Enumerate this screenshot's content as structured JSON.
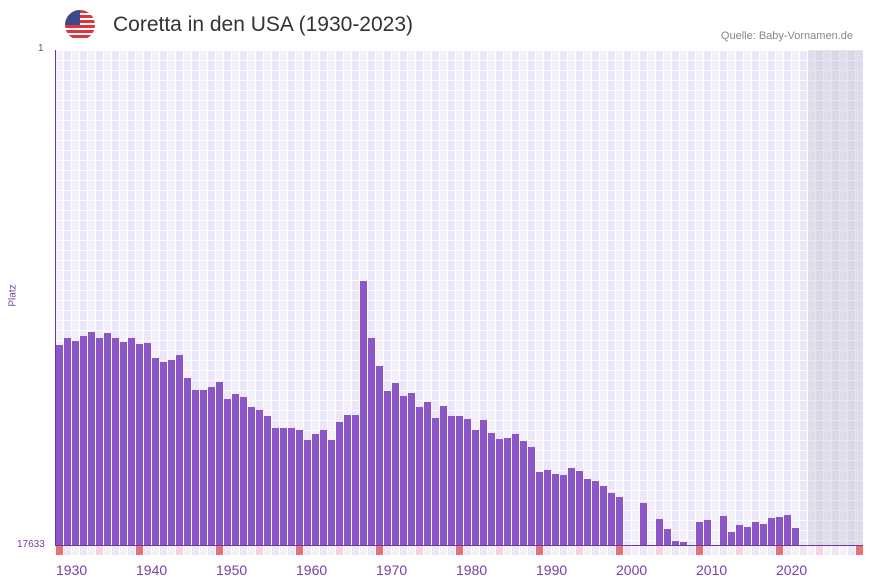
{
  "header": {
    "title": "Coretta in den USA (1930-2023)",
    "source": "Quelle: Baby-Vornamen.de",
    "flag_icon": "us-flag-icon"
  },
  "colors": {
    "bar": "#8c55c8",
    "decade_marker": "#e87078",
    "half_decade_marker": "#f5d5df",
    "axis": "#6a3a9a"
  },
  "chart_data": {
    "type": "bar",
    "title": "Coretta in den USA (1930-2023)",
    "xlabel": "",
    "ylabel": "Platz",
    "ylim": [
      17633,
      1
    ],
    "y_ticks": [
      "1",
      "17633"
    ],
    "x_ticks": [
      "1930",
      "1940",
      "1950",
      "1960",
      "1970",
      "1980",
      "1990",
      "2000",
      "2010",
      "2020"
    ],
    "x_range": [
      1930,
      2030
    ],
    "future_from": 2024,
    "x": [
      1930,
      1931,
      1932,
      1933,
      1934,
      1935,
      1936,
      1937,
      1938,
      1939,
      1940,
      1941,
      1942,
      1943,
      1944,
      1945,
      1946,
      1947,
      1948,
      1949,
      1950,
      1951,
      1952,
      1953,
      1954,
      1955,
      1956,
      1957,
      1958,
      1959,
      1960,
      1961,
      1962,
      1963,
      1964,
      1965,
      1966,
      1967,
      1968,
      1969,
      1970,
      1971,
      1972,
      1973,
      1974,
      1975,
      1976,
      1977,
      1978,
      1979,
      1980,
      1981,
      1982,
      1983,
      1984,
      1985,
      1986,
      1987,
      1988,
      1989,
      1990,
      1991,
      1992,
      1993,
      1994,
      1995,
      1996,
      1997,
      1998,
      1999,
      2000,
      2001,
      2002,
      2003,
      2004,
      2005,
      2006,
      2007,
      2008,
      2009,
      2010,
      2011,
      2012,
      2013,
      2014,
      2015,
      2016,
      2017,
      2018,
      2019,
      2020,
      2021,
      2022,
      2023
    ],
    "values": [
      10509,
      10260,
      10366,
      10188,
      10046,
      10260,
      10081,
      10260,
      10402,
      10260,
      10473,
      10438,
      10972,
      11114,
      11043,
      10865,
      11684,
      12112,
      12112,
      12005,
      11827,
      12432,
      12254,
      12361,
      12717,
      12824,
      13038,
      13465,
      13465,
      13465,
      13537,
      13893,
      13679,
      13537,
      13893,
      13252,
      13002,
      13002,
      8229,
      10260,
      11257,
      12147,
      11862,
      12326,
      12219,
      12717,
      12539,
      13109,
      12682,
      13038,
      13038,
      13145,
      13537,
      13180,
      13643,
      13857,
      13822,
      13679,
      13928,
      14142,
      15033,
      14961,
      15104,
      15140,
      14890,
      14997,
      15282,
      15353,
      15531,
      15781,
      15923,
      null,
      null,
      16137,
      null,
      16707,
      17063,
      17490,
      17526,
      null,
      16814,
      16742,
      null,
      16600,
      17170,
      16921,
      16992,
      16814,
      16885,
      16671,
      16636,
      16564,
      17027,
      null
    ]
  }
}
